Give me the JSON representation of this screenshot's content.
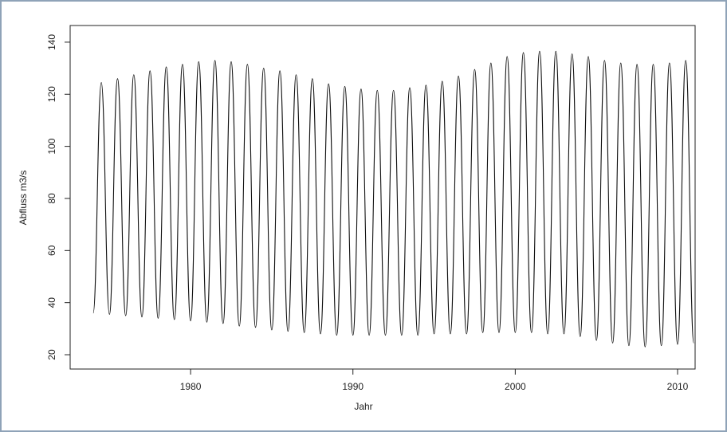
{
  "chart_data": {
    "type": "line",
    "x_label": "Jahr",
    "y_label": "Abfluss m3/s",
    "x": [
      1974.0,
      1974.5,
      1975.0,
      1975.5,
      1976.0,
      1976.5,
      1977.0,
      1977.5,
      1978.0,
      1978.5,
      1979.0,
      1979.5,
      1980.0,
      1980.5,
      1981.0,
      1981.5,
      1982.0,
      1982.5,
      1983.0,
      1983.5,
      1984.0,
      1984.5,
      1985.0,
      1985.5,
      1986.0,
      1986.5,
      1987.0,
      1987.5,
      1988.0,
      1988.5,
      1989.0,
      1989.5,
      1990.0,
      1990.5,
      1991.0,
      1991.5,
      1992.0,
      1992.5,
      1993.0,
      1993.5,
      1994.0,
      1994.5,
      1995.0,
      1995.5,
      1996.0,
      1996.5,
      1997.0,
      1997.5,
      1998.0,
      1998.5,
      1999.0,
      1999.5,
      2000.0,
      2000.5,
      2001.0,
      2001.5,
      2002.0,
      2002.5,
      2003.0,
      2003.5,
      2004.0,
      2004.5,
      2005.0,
      2005.5,
      2006.0,
      2006.5,
      2007.0,
      2007.5,
      2008.0,
      2008.5,
      2009.0,
      2009.5,
      2010.0,
      2010.5,
      2011.0
    ],
    "series": [
      {
        "color": "#111111",
        "values": [
          36,
          124.5,
          35.5,
          126,
          35,
          127.5,
          34.5,
          129,
          34,
          130.5,
          33.5,
          131.5,
          33,
          132.5,
          32.5,
          133,
          32,
          132.5,
          31,
          131.5,
          30.5,
          130,
          29.5,
          129,
          29,
          127.5,
          28.5,
          126,
          28,
          124,
          27.5,
          123,
          27.5,
          122,
          27.5,
          121.5,
          27.5,
          121.5,
          27.5,
          122.5,
          27.5,
          123.5,
          28,
          125,
          28,
          127,
          28,
          129.5,
          28.5,
          132,
          28.5,
          134.5,
          28.5,
          136,
          28.5,
          136.5,
          28,
          136.5,
          28,
          135.5,
          27,
          134.5,
          25.5,
          133,
          24.5,
          132,
          23.5,
          131.5,
          23,
          131.5,
          23.5,
          132,
          24,
          133,
          24.5
        ]
      }
    ],
    "xlim": [
      1972.58,
      2011.08
    ],
    "ylim": [
      14.5,
      146.4
    ],
    "xticks": [
      1980,
      1990,
      2000,
      2010
    ],
    "yticks": [
      20,
      40,
      60,
      80,
      100,
      120,
      140
    ]
  }
}
